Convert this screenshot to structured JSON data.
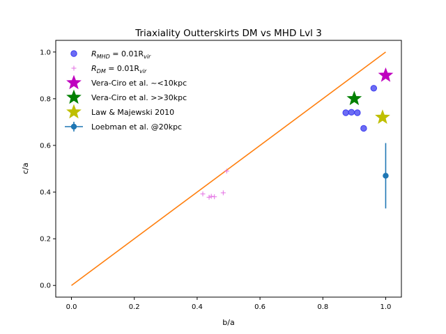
{
  "chart_data": {
    "type": "scatter",
    "title": "Triaxiality Outterskirts DM vs MHD Lvl 3",
    "xlabel": "b/a",
    "ylabel": "c/a",
    "xlim": [
      -0.05,
      1.05
    ],
    "ylim": [
      -0.05,
      1.05
    ],
    "x_ticks": [
      "0.0",
      "0.2",
      "0.4",
      "0.6",
      "0.8",
      "1.0"
    ],
    "y_ticks": [
      "0.0",
      "0.2",
      "0.4",
      "0.6",
      "0.8",
      "1.0"
    ],
    "x_tick_values": [
      0.0,
      0.2,
      0.4,
      0.6,
      0.8,
      1.0
    ],
    "y_tick_values": [
      0.0,
      0.2,
      0.4,
      0.6,
      0.8,
      1.0
    ],
    "grid": false,
    "legend_position": "top-left",
    "line": {
      "x": [
        0.0,
        1.0
      ],
      "y": [
        0.0,
        1.0
      ],
      "color": "#ff7f0e"
    },
    "series": [
      {
        "name": "R_MHD = 0.01R_vir",
        "legend_main": "R",
        "legend_sub1": "MHD",
        "legend_mid": " = 0.01R",
        "legend_sub2": "vir",
        "marker": "circle",
        "color": "#3b3bf0",
        "x": [
          0.873,
          0.891,
          0.91,
          0.93,
          0.962
        ],
        "y": [
          0.74,
          0.742,
          0.74,
          0.673,
          0.845
        ]
      },
      {
        "name": "R_DM = 0.01R_vir",
        "legend_main": "R",
        "legend_sub1": "DM",
        "legend_mid": " = 0.01R",
        "legend_sub2": "vir",
        "marker": "plus",
        "color": "#e36fe3",
        "x": [
          0.418,
          0.438,
          0.445,
          0.455,
          0.483,
          0.494
        ],
        "y": [
          0.392,
          0.378,
          0.382,
          0.38,
          0.397,
          0.49
        ]
      },
      {
        "name": "Vera-Ciro et al. ~<10kpc",
        "marker": "star",
        "color": "#bf00bf",
        "x": [
          1.0
        ],
        "y": [
          0.9
        ]
      },
      {
        "name": "Vera-Ciro et al. >>30kpc",
        "marker": "star",
        "color": "#008000",
        "x": [
          0.9
        ],
        "y": [
          0.8
        ]
      },
      {
        "name": "Law & Majewski 2010",
        "marker": "star",
        "color": "#bfbf00",
        "x": [
          0.99
        ],
        "y": [
          0.72
        ]
      },
      {
        "name": "Loebman et al. @20kpc",
        "marker": "errorbar",
        "color": "#1f77b4",
        "x": [
          1.0
        ],
        "y": [
          0.47
        ],
        "yerr": [
          0.14
        ]
      }
    ]
  }
}
